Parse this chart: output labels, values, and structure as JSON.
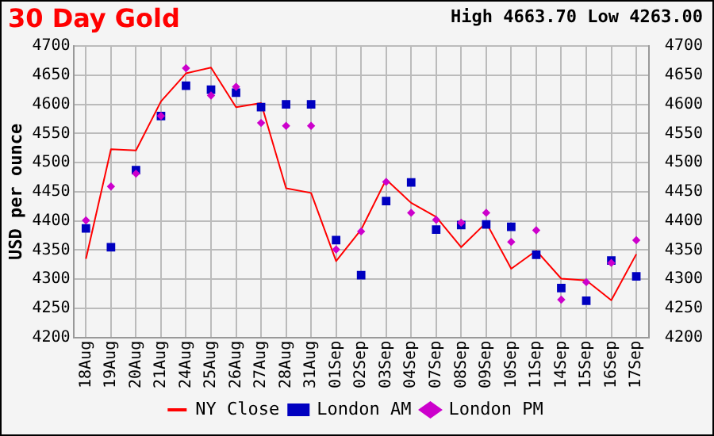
{
  "chart_data": {
    "type": "line",
    "title": "30 Day Gold",
    "annotations": [
      "High 4663.70 Low 4263.00"
    ],
    "ylabel": "USD per ounce",
    "categories": [
      "18Aug",
      "19Aug",
      "20Aug",
      "21Aug",
      "24Aug",
      "25Aug",
      "26Aug",
      "27Aug",
      "28Aug",
      "31Aug",
      "01Sep",
      "02Sep",
      "03Sep",
      "04Sep",
      "07Sep",
      "08Sep",
      "09Sep",
      "10Sep",
      "11Sep",
      "14Sep",
      "15Sep",
      "16Sep",
      "17Sep"
    ],
    "series": [
      {
        "name": "NY Close",
        "marker": "none",
        "color": "#ff0000",
        "values": [
          4335,
          4523,
          4521,
          4605,
          4653,
          4663,
          4595,
          4602,
          4456,
          4448,
          4331,
          4385,
          4471,
          4431,
          4407,
          4355,
          4397,
          4318,
          4349,
          4301,
          4298,
          4264,
          4343
        ]
      },
      {
        "name": "London AM",
        "type": "scatter",
        "marker": "square",
        "color": "#0000c0",
        "values": [
          4387,
          4355,
          4487,
          4580,
          4632,
          4625,
          4620,
          4595,
          4600,
          4600,
          4367,
          4307,
          4434,
          4466,
          4385,
          4393,
          4394,
          4390,
          4342,
          4285,
          4263,
          4332,
          4305
        ]
      },
      {
        "name": "London PM",
        "type": "scatter",
        "marker": "diamond",
        "color": "#cc00cc",
        "values": [
          4401,
          4459,
          4481,
          4580,
          4662,
          4615,
          4630,
          4568,
          4563,
          4563,
          4351,
          4382,
          4467,
          4414,
          4402,
          4397,
          4414,
          4364,
          4384,
          4265,
          4295,
          4328,
          4367
        ]
      }
    ],
    "ylim": [
      4200,
      4700
    ],
    "yticks": [
      4200,
      4250,
      4300,
      4350,
      4400,
      4450,
      4500,
      4550,
      4600,
      4650,
      4700
    ],
    "y2lim": [
      4200,
      4700
    ],
    "y2ticks": [
      4200,
      4250,
      4300,
      4350,
      4400,
      4450,
      4500,
      4550,
      4600,
      4650,
      4700
    ],
    "grid": true,
    "legend": "bottom"
  }
}
